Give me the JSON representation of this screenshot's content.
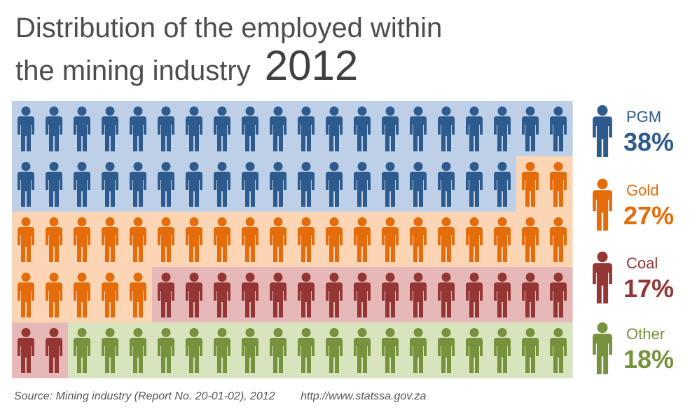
{
  "title": {
    "line1": "Distribution of the employed within",
    "line2": "the mining industry",
    "year": "2012"
  },
  "chart_data": {
    "type": "pictograph",
    "total_figures": 100,
    "figures_per_row": 20,
    "series": [
      {
        "name": "PGM",
        "value": 38,
        "label": "38%",
        "color": "#2e5b8e",
        "bg": "#bdd0e8"
      },
      {
        "name": "Gold",
        "value": 27,
        "label": "27%",
        "color": "#e46c0a",
        "bg": "#fcd5b5"
      },
      {
        "name": "Coal",
        "value": 17,
        "label": "17%",
        "color": "#943634",
        "bg": "#e6b9b8"
      },
      {
        "name": "Other",
        "value": 18,
        "label": "18%",
        "color": "#76923c",
        "bg": "#d7e4bd"
      }
    ]
  },
  "source": {
    "citation": "Source: Mining industry (Report No. 20-01-02), 2012",
    "url": "http://www.statssa.gov.za"
  }
}
